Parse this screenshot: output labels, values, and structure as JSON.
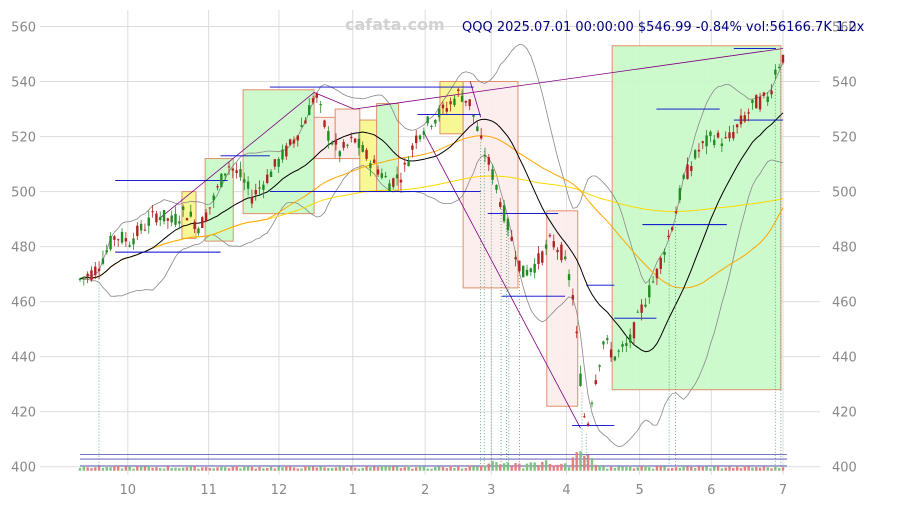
{
  "header": {
    "watermark": "cafata.com",
    "info": "QQQ 2025.07.01 00:00:00 $546.99 -0.84% vol:56166.7K 1.2x"
  },
  "chart_data": {
    "type": "candlestick",
    "symbol": "QQQ",
    "ylim": [
      397,
      566
    ],
    "y_ticks": [
      400,
      420,
      440,
      460,
      480,
      500,
      520,
      540,
      560
    ],
    "y_tick_labels": [
      "400",
      "420",
      "440",
      "460",
      "480",
      "500",
      "520",
      "540",
      "560"
    ],
    "x_ticks": [
      {
        "label": "10",
        "t": 0.068
      },
      {
        "label": "11",
        "t": 0.183
      },
      {
        "label": "12",
        "t": 0.283
      },
      {
        "label": "1",
        "t": 0.388
      },
      {
        "label": "2",
        "t": 0.491
      },
      {
        "label": "3",
        "t": 0.585
      },
      {
        "label": "4",
        "t": 0.692
      },
      {
        "label": "5",
        "t": 0.796
      },
      {
        "label": "6",
        "t": 0.898
      },
      {
        "label": "7",
        "t": 1.0
      }
    ],
    "grid": true,
    "colors": {
      "up": "#228b22",
      "down": "#b22222",
      "grid": "#dddddd",
      "ma_fast": "#000000",
      "ma_mid": "#ffa500",
      "ma_slow": "#ffd700",
      "band": "#888888",
      "trend": "#800080",
      "level": "#0000cd",
      "vol_up": "#7fc27f",
      "vol_down": "#e08080"
    },
    "price_path": [
      [
        0,
        468
      ],
      [
        0.02,
        471
      ],
      [
        0.035,
        477
      ],
      [
        0.05,
        484
      ],
      [
        0.07,
        482
      ],
      [
        0.09,
        487
      ],
      [
        0.11,
        492
      ],
      [
        0.13,
        489
      ],
      [
        0.15,
        493
      ],
      [
        0.17,
        487
      ],
      [
        0.19,
        497
      ],
      [
        0.21,
        510
      ],
      [
        0.23,
        505
      ],
      [
        0.245,
        498
      ],
      [
        0.26,
        503
      ],
      [
        0.28,
        510
      ],
      [
        0.3,
        517
      ],
      [
        0.32,
        526
      ],
      [
        0.335,
        536
      ],
      [
        0.35,
        522
      ],
      [
        0.37,
        514
      ],
      [
        0.39,
        519
      ],
      [
        0.41,
        512
      ],
      [
        0.425,
        508
      ],
      [
        0.44,
        503
      ],
      [
        0.46,
        507
      ],
      [
        0.48,
        521
      ],
      [
        0.5,
        526
      ],
      [
        0.52,
        530
      ],
      [
        0.54,
        536
      ],
      [
        0.555,
        532
      ],
      [
        0.57,
        518
      ],
      [
        0.585,
        508
      ],
      [
        0.6,
        495
      ],
      [
        0.615,
        482
      ],
      [
        0.63,
        470
      ],
      [
        0.65,
        474
      ],
      [
        0.67,
        482
      ],
      [
        0.685,
        478
      ],
      [
        0.7,
        465
      ],
      [
        0.712,
        432
      ],
      [
        0.72,
        412
      ],
      [
        0.73,
        428
      ],
      [
        0.745,
        446
      ],
      [
        0.76,
        440
      ],
      [
        0.78,
        444
      ],
      [
        0.8,
        458
      ],
      [
        0.82,
        470
      ],
      [
        0.84,
        486
      ],
      [
        0.86,
        505
      ],
      [
        0.88,
        515
      ],
      [
        0.9,
        520
      ],
      [
        0.92,
        518
      ],
      [
        0.94,
        525
      ],
      [
        0.96,
        532
      ],
      [
        0.98,
        534
      ],
      [
        0.99,
        545
      ],
      [
        1.0,
        549
      ]
    ],
    "boxes": [
      {
        "t0": 0.145,
        "t1": 0.165,
        "y0": 483,
        "y1": 500,
        "kind": "neutral"
      },
      {
        "t0": 0.178,
        "t1": 0.218,
        "y0": 482,
        "y1": 512,
        "kind": "bull"
      },
      {
        "t0": 0.232,
        "t1": 0.333,
        "y0": 492,
        "y1": 537,
        "kind": "bull"
      },
      {
        "t0": 0.333,
        "t1": 0.363,
        "y0": 512,
        "y1": 527,
        "kind": "bear"
      },
      {
        "t0": 0.363,
        "t1": 0.398,
        "y0": 512,
        "y1": 530,
        "kind": "bear"
      },
      {
        "t0": 0.398,
        "t1": 0.422,
        "y0": 500,
        "y1": 526,
        "kind": "neutral"
      },
      {
        "t0": 0.422,
        "t1": 0.453,
        "y0": 500,
        "y1": 532,
        "kind": "bull"
      },
      {
        "t0": 0.512,
        "t1": 0.545,
        "y0": 521,
        "y1": 540,
        "kind": "neutral"
      },
      {
        "t0": 0.545,
        "t1": 0.623,
        "y0": 465,
        "y1": 540,
        "kind": "bear"
      },
      {
        "t0": 0.664,
        "t1": 0.708,
        "y0": 422,
        "y1": 493,
        "kind": "bear"
      },
      {
        "t0": 0.757,
        "t1": 0.997,
        "y0": 428,
        "y1": 553,
        "kind": "bull"
      }
    ],
    "levels": [
      {
        "t0": 0.05,
        "t1": 0.21,
        "y": 504
      },
      {
        "t0": 0.05,
        "t1": 0.2,
        "y": 478
      },
      {
        "t0": 0.2,
        "t1": 0.27,
        "y": 513
      },
      {
        "t0": 0.27,
        "t1": 0.56,
        "y": 538
      },
      {
        "t0": 0.27,
        "t1": 0.57,
        "y": 500
      },
      {
        "t0": 0.48,
        "t1": 0.57,
        "y": 528
      },
      {
        "t0": 0.58,
        "t1": 0.68,
        "y": 492
      },
      {
        "t0": 0.6,
        "t1": 0.69,
        "y": 462
      },
      {
        "t0": 0.7,
        "t1": 0.76,
        "y": 415
      },
      {
        "t0": 0.72,
        "t1": 0.76,
        "y": 466
      },
      {
        "t0": 0.76,
        "t1": 0.82,
        "y": 454
      },
      {
        "t0": 0.8,
        "t1": 0.92,
        "y": 488
      },
      {
        "t0": 0.82,
        "t1": 0.91,
        "y": 530
      },
      {
        "t0": 0.93,
        "t1": 1.0,
        "y": 526
      },
      {
        "t0": 0.93,
        "t1": 0.99,
        "y": 552
      }
    ],
    "trendlines": [
      [
        [
          0.112,
          490
        ],
        [
          0.333,
          536
        ],
        [
          0.39,
          530
        ],
        [
          1.0,
          552
        ]
      ],
      [
        [
          0.488,
          522
        ],
        [
          0.712,
          414
        ]
      ],
      [
        [
          0.555,
          540
        ],
        [
          0.57,
          527
        ]
      ]
    ],
    "marker_times": [
      0.027,
      0.57,
      0.575,
      0.585,
      0.599,
      0.607,
      0.61,
      0.625,
      0.714,
      0.72,
      0.838,
      0.847,
      0.989,
      0.997
    ],
    "volume_levels": [
      404.5,
      402.8,
      400.3
    ]
  }
}
